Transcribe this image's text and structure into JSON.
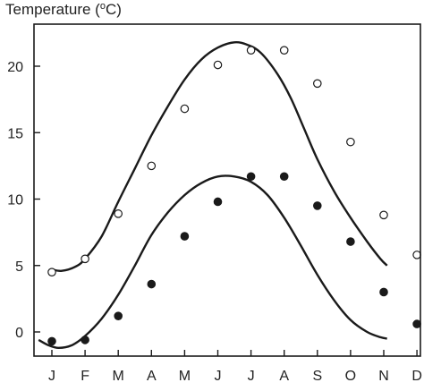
{
  "chart_data": {
    "type": "line",
    "title": "Temperature (°C)",
    "title_parts": {
      "prefix": "Temperature (",
      "deg": "o",
      "suffix": "C)"
    },
    "xlabel": "",
    "ylabel": "",
    "categories": [
      "J",
      "F",
      "M",
      "A",
      "M",
      "J",
      "J",
      "A",
      "S",
      "O",
      "N",
      "D"
    ],
    "ylim": [
      -2,
      23
    ],
    "yticks": [
      0,
      5,
      10,
      15,
      20
    ],
    "grid": false,
    "legend": "none",
    "series": [
      {
        "marker": "open-circle",
        "points": [
          4.5,
          5.5,
          8.9,
          12.5,
          16.8,
          20.1,
          21.2,
          21.2,
          18.7,
          14.3,
          8.8,
          5.8
        ],
        "curve": [
          [
            0.0,
            4.7
          ],
          [
            0.3,
            4.6
          ],
          [
            0.7,
            4.9
          ],
          [
            1.0,
            5.5
          ],
          [
            1.5,
            7.2
          ],
          [
            2.0,
            9.8
          ],
          [
            2.5,
            12.3
          ],
          [
            3.0,
            14.8
          ],
          [
            3.5,
            17.0
          ],
          [
            4.0,
            19.0
          ],
          [
            4.5,
            20.5
          ],
          [
            5.0,
            21.4
          ],
          [
            5.5,
            21.8
          ],
          [
            5.9,
            21.6
          ],
          [
            6.3,
            21.0
          ],
          [
            6.8,
            19.4
          ],
          [
            7.2,
            17.6
          ],
          [
            7.6,
            15.3
          ],
          [
            8.0,
            13.0
          ],
          [
            8.5,
            10.6
          ],
          [
            9.0,
            8.6
          ],
          [
            9.5,
            6.8
          ],
          [
            9.9,
            5.5
          ],
          [
            10.1,
            5.0
          ]
        ],
        "color": "#1a1a1a"
      },
      {
        "marker": "filled-circle",
        "points": [
          -0.7,
          -0.6,
          1.2,
          3.6,
          7.2,
          9.8,
          11.7,
          11.7,
          9.5,
          6.8,
          3.0,
          0.6
        ],
        "curve": [
          [
            -0.4,
            -0.6
          ],
          [
            -0.1,
            -1.0
          ],
          [
            0.2,
            -1.2
          ],
          [
            0.6,
            -1.0
          ],
          [
            1.0,
            -0.3
          ],
          [
            1.5,
            1.0
          ],
          [
            2.0,
            2.8
          ],
          [
            2.5,
            5.0
          ],
          [
            3.0,
            7.3
          ],
          [
            3.5,
            9.0
          ],
          [
            4.0,
            10.3
          ],
          [
            4.5,
            11.2
          ],
          [
            5.0,
            11.7
          ],
          [
            5.5,
            11.7
          ],
          [
            6.0,
            11.3
          ],
          [
            6.5,
            10.3
          ],
          [
            7.0,
            8.6
          ],
          [
            7.5,
            6.5
          ],
          [
            8.0,
            4.3
          ],
          [
            8.5,
            2.4
          ],
          [
            9.0,
            0.9
          ],
          [
            9.5,
            0.0
          ],
          [
            9.9,
            -0.4
          ],
          [
            10.1,
            -0.5
          ]
        ],
        "color": "#1a1a1a"
      }
    ]
  }
}
